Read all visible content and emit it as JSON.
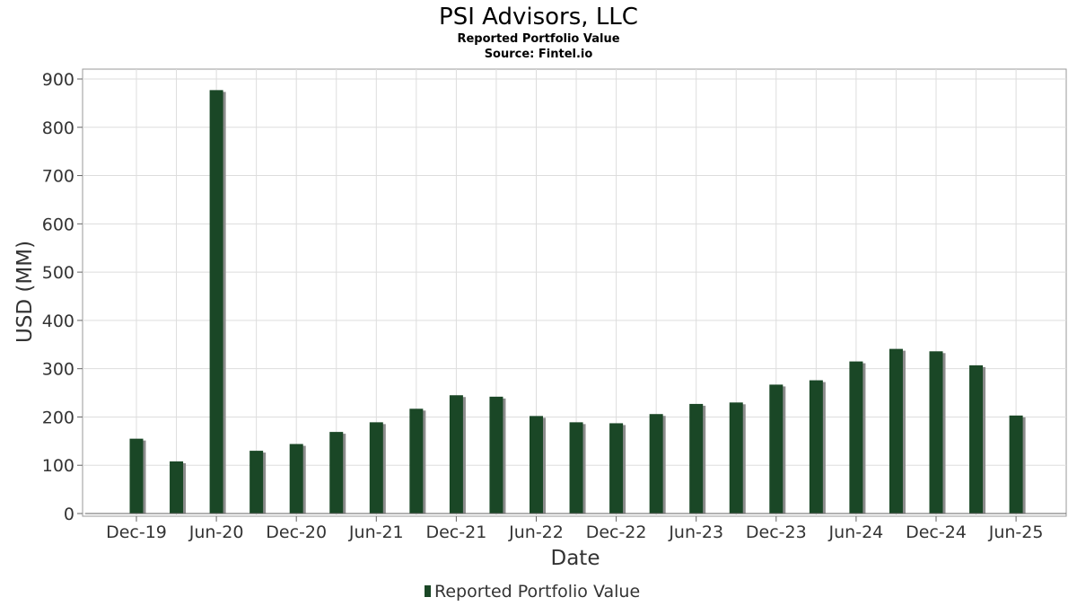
{
  "chart_data": {
    "type": "bar",
    "title": "PSI Advisors, LLC",
    "subtitle": "Reported Portfolio Value",
    "source": "Source: Fintel.io",
    "xlabel": "Date",
    "ylabel": "USD (MM)",
    "ylim": [
      0,
      900
    ],
    "yticks": [
      0,
      100,
      200,
      300,
      400,
      500,
      600,
      700,
      800,
      900
    ],
    "xtick_labels": [
      "Dec-19",
      "Jun-20",
      "Dec-20",
      "Jun-21",
      "Dec-21",
      "Jun-22",
      "Dec-22",
      "Jun-23",
      "Dec-23",
      "Jun-24",
      "Dec-24",
      "Jun-25"
    ],
    "grid": true,
    "legend_position": "bottom",
    "bar_color": "#1a4726",
    "shadow_color": "#8c8c8c",
    "series": [
      {
        "name": "Reported Portfolio Value",
        "categories": [
          "Dec-19",
          "Mar-20",
          "Jun-20",
          "Sep-20",
          "Dec-20",
          "Mar-21",
          "Jun-21",
          "Sep-21",
          "Dec-21",
          "Mar-22",
          "Jun-22",
          "Sep-22",
          "Dec-22",
          "Mar-23",
          "Jun-23",
          "Sep-23",
          "Dec-23",
          "Mar-24",
          "Jun-24",
          "Sep-24",
          "Dec-24",
          "Mar-25",
          "Jun-25"
        ],
        "values": [
          155,
          108,
          877,
          130,
          144,
          169,
          189,
          217,
          245,
          242,
          202,
          189,
          187,
          206,
          227,
          230,
          267,
          276,
          315,
          341,
          336,
          307,
          203
        ]
      }
    ]
  }
}
